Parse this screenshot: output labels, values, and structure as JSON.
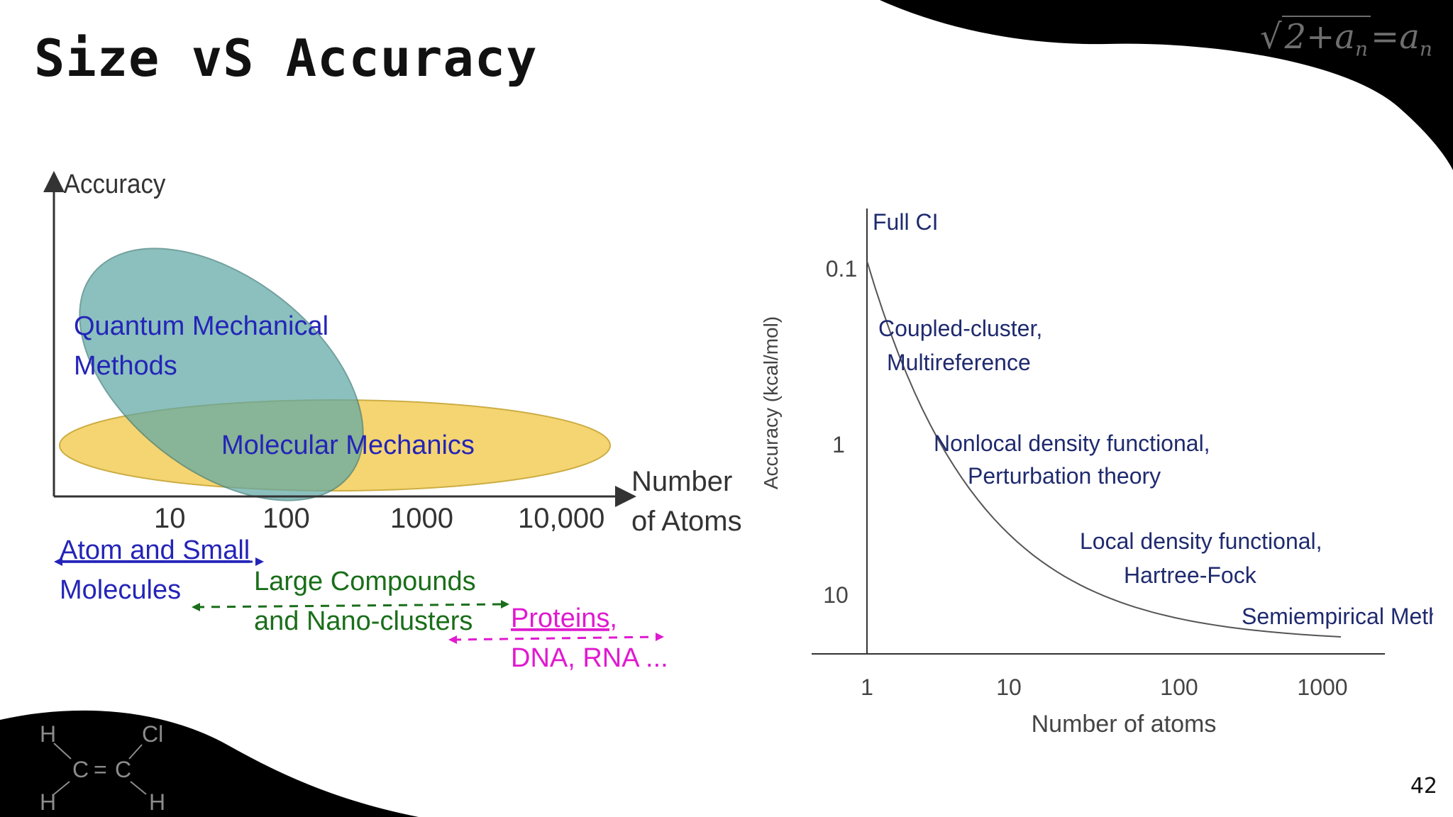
{
  "slide": {
    "title": "Size vS Accuracy",
    "page_number": "42",
    "formula": {
      "radicand": "2+a",
      "radicand_sub": "n",
      "equals": "=a",
      "rhs_sub": "n"
    },
    "chem": {
      "h1": "H",
      "h2": "H",
      "h3": "H",
      "cl": "Cl",
      "c1": "C",
      "eq": "=",
      "c2": "C"
    }
  },
  "left_diagram": {
    "y_label": "Accuracy",
    "x_label_line1": "Number",
    "x_label_line2": "of Atoms",
    "ticks": [
      "10",
      "100",
      "1000",
      "10,000"
    ],
    "qm_line1": "Quantum Mechanical",
    "qm_line2": "Methods",
    "mm_label": "Molecular Mechanics",
    "atom_line1": "Atom and Small",
    "atom_line2": "Molecules",
    "large_line1": "Large Compounds",
    "large_line2": "and Nano-clusters",
    "proteins_line1": "Proteins,",
    "proteins_line2": "DNA, RNA ...",
    "colors": {
      "qm_fill": "#5fa8a6",
      "mm_fill": "#f5d36a",
      "blue_text": "#2424b8",
      "green_text": "#1a6e1a",
      "magenta_text": "#e01ad0"
    }
  },
  "chart_data": {
    "type": "line",
    "title": "",
    "xlabel": "Number of atoms",
    "ylabel": "Accuracy (kcal/mol)",
    "x_scale": "log",
    "y_scale": "log, inverted",
    "x_ticks": [
      "1",
      "10",
      "100",
      "1000"
    ],
    "y_ticks": [
      "0.1",
      "1",
      "10"
    ],
    "grid": false,
    "annotations": [
      {
        "text": "Full CI"
      },
      {
        "text": "Coupled-cluster,",
        "text2": "Multireference"
      },
      {
        "text": "Nonlocal density functional,",
        "text2": "Perturbation theory"
      },
      {
        "text": "Local density functional,",
        "text2": "Hartree-Fock"
      },
      {
        "text": "Semiempirical Methods"
      }
    ],
    "curve_color": "#555555"
  }
}
